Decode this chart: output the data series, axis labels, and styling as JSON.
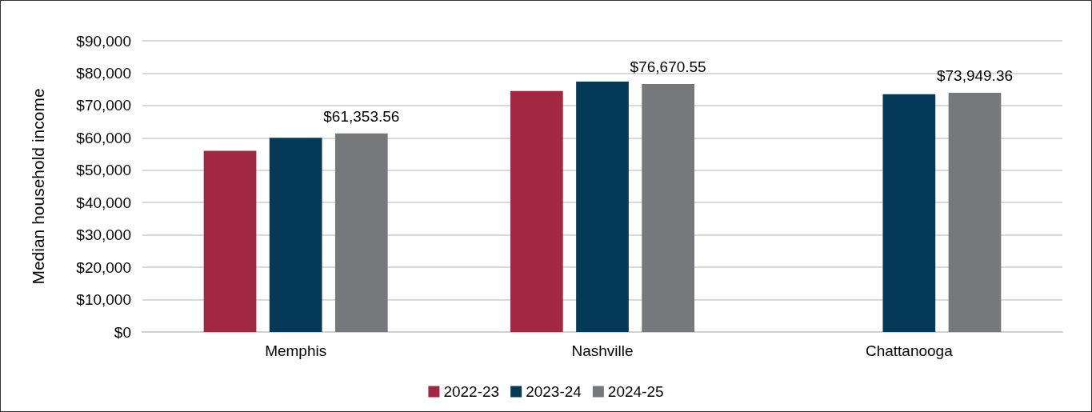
{
  "chart_data": {
    "type": "bar",
    "ylabel": "Median household income",
    "categories": [
      "Memphis",
      "Nashville",
      "Chattanooga"
    ],
    "series": [
      {
        "name": "2022-23",
        "color": "#a12743",
        "values": [
          56000,
          74500,
          null
        ]
      },
      {
        "name": "2023-24",
        "color": "#043a58",
        "values": [
          60000,
          77400,
          73500
        ]
      },
      {
        "name": "2024-25",
        "color": "#77787c",
        "values": [
          61353.56,
          76670.55,
          73949.36
        ],
        "value_labels": [
          "$61,353.56",
          "$76,670.55",
          "$73,949.36"
        ]
      }
    ],
    "ylim": [
      0,
      90000
    ],
    "yticks": [
      {
        "value": 0,
        "label": "$0"
      },
      {
        "value": 10000,
        "label": "$10,000"
      },
      {
        "value": 20000,
        "label": "$20,000"
      },
      {
        "value": 30000,
        "label": "$30,000"
      },
      {
        "value": 40000,
        "label": "$40,000"
      },
      {
        "value": 50000,
        "label": "$50,000"
      },
      {
        "value": 60000,
        "label": "$60,000"
      },
      {
        "value": 70000,
        "label": "$70,000"
      },
      {
        "value": 80000,
        "label": "$80,000"
      },
      {
        "value": 90000,
        "label": "$90,000"
      }
    ],
    "grid": "y",
    "legend": "bottom"
  }
}
